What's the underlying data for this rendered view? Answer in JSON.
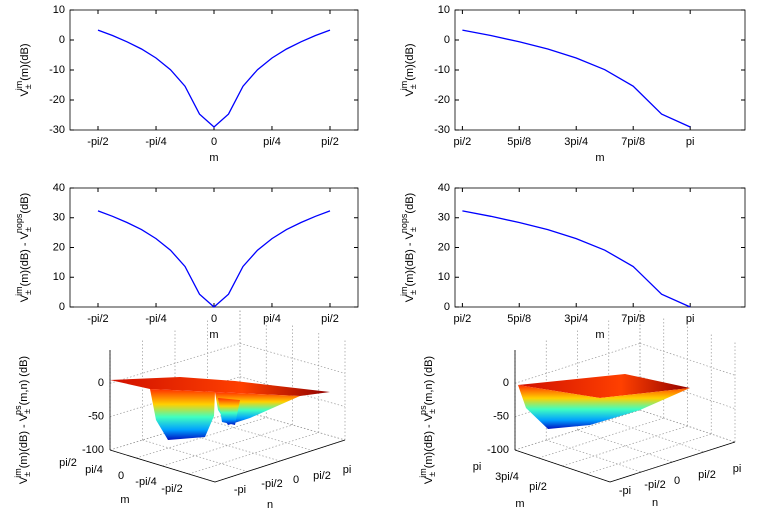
{
  "chart_data": [
    {
      "type": "line",
      "xlabel": "m",
      "ylabel": [
        {
          "text": "V",
          "style": "normal"
        },
        {
          "text": "±",
          "style": "sub"
        },
        {
          "text": "im",
          "style": "sup"
        },
        {
          "text": "(m)(dB)",
          "style": "normal"
        }
      ],
      "x": [
        -1.571,
        -1.374,
        -1.178,
        -0.982,
        -0.785,
        -0.589,
        -0.393,
        -0.196,
        0,
        0.196,
        0.393,
        0.589,
        0.785,
        0.982,
        1.178,
        1.374,
        1.571
      ],
      "series": [
        {
          "color": "#0000ff",
          "values": [
            3.3,
            1.5,
            -0.6,
            -3.0,
            -6.0,
            -9.9,
            -15.4,
            -24.7,
            -29,
            -24.7,
            -15.4,
            -9.9,
            -6.0,
            -3.0,
            -0.6,
            1.5,
            3.3
          ]
        }
      ],
      "xlim": [
        -1.95,
        1.95
      ],
      "ylim": [
        -30,
        10
      ],
      "xticks": [
        {
          "value": -1.571,
          "label": "-pi/2"
        },
        {
          "value": -0.785,
          "label": "-pi/4"
        },
        0,
        {
          "value": 0.785,
          "label": "pi/4"
        },
        {
          "value": 1.571,
          "label": "pi/2"
        }
      ],
      "yticks": [
        -30,
        -20,
        -10,
        0,
        10
      ]
    },
    {
      "type": "line",
      "xlabel": "m",
      "ylabel": [
        {
          "text": "V",
          "style": "normal"
        },
        {
          "text": "±",
          "style": "sub"
        },
        {
          "text": "im",
          "style": "sup"
        },
        {
          "text": "(m)(dB)",
          "style": "normal"
        }
      ],
      "x": [
        1.571,
        1.767,
        1.963,
        2.16,
        2.356,
        2.553,
        2.749,
        2.945,
        3.142
      ],
      "series": [
        {
          "color": "#0000ff",
          "values": [
            3.3,
            1.5,
            -0.6,
            -3.0,
            -6.0,
            -9.9,
            -15.4,
            -24.7,
            -29
          ]
        }
      ],
      "xlim": [
        1.52,
        3.52
      ],
      "ylim": [
        -30,
        10
      ],
      "xticks": [
        {
          "value": 1.571,
          "label": "pi/2"
        },
        {
          "value": 1.963,
          "label": "5pi/8"
        },
        {
          "value": 2.356,
          "label": "3pi/4"
        },
        {
          "value": 2.749,
          "label": "7pi/8"
        },
        {
          "value": 3.142,
          "label": "pi"
        }
      ],
      "yticks": [
        -30,
        -20,
        -10,
        0,
        10
      ]
    },
    {
      "type": "line",
      "xlabel": "m",
      "ylabel": [
        {
          "text": "V",
          "style": "normal"
        },
        {
          "text": "±",
          "style": "sub"
        },
        {
          "text": "im",
          "style": "sup"
        },
        {
          "text": "(m)(dB) - V",
          "style": "normal"
        },
        {
          "text": "±",
          "style": "sub"
        },
        {
          "text": "nops",
          "style": "sup"
        },
        {
          "text": "(dB)",
          "style": "normal"
        }
      ],
      "x": [
        -1.571,
        -1.374,
        -1.178,
        -0.982,
        -0.785,
        -0.589,
        -0.393,
        -0.196,
        0,
        0.196,
        0.393,
        0.589,
        0.785,
        0.982,
        1.178,
        1.374,
        1.571
      ],
      "series": [
        {
          "color": "#0000ff",
          "values": [
            32.3,
            30.5,
            28.4,
            26,
            23,
            19.1,
            13.6,
            4.3,
            0,
            4.3,
            13.6,
            19.1,
            23,
            26,
            28.4,
            30.5,
            32.3
          ]
        }
      ],
      "xlim": [
        -1.95,
        1.95
      ],
      "ylim": [
        0,
        40
      ],
      "xticks": [
        {
          "value": -1.571,
          "label": "-pi/2"
        },
        {
          "value": -0.785,
          "label": "-pi/4"
        },
        0,
        {
          "value": 0.785,
          "label": "pi/4"
        },
        {
          "value": 1.571,
          "label": "pi/2"
        }
      ],
      "yticks": [
        0,
        10,
        20,
        30,
        40
      ]
    },
    {
      "type": "line",
      "xlabel": "m",
      "ylabel": [
        {
          "text": "V",
          "style": "normal"
        },
        {
          "text": "±",
          "style": "sub"
        },
        {
          "text": "im",
          "style": "sup"
        },
        {
          "text": "(m)(dB) - V",
          "style": "normal"
        },
        {
          "text": "±",
          "style": "sub"
        },
        {
          "text": "nops",
          "style": "sup"
        },
        {
          "text": "(dB)",
          "style": "normal"
        }
      ],
      "x": [
        1.571,
        1.767,
        1.963,
        2.16,
        2.356,
        2.553,
        2.749,
        2.945,
        3.142
      ],
      "series": [
        {
          "color": "#0000ff",
          "values": [
            32.3,
            30.5,
            28.4,
            26,
            23,
            19.1,
            13.6,
            4.3,
            0
          ]
        }
      ],
      "xlim": [
        1.52,
        3.52
      ],
      "ylim": [
        0,
        40
      ],
      "xticks": [
        {
          "value": 1.571,
          "label": "pi/2"
        },
        {
          "value": 1.963,
          "label": "5pi/8"
        },
        {
          "value": 2.356,
          "label": "3pi/4"
        },
        {
          "value": 2.749,
          "label": "7pi/8"
        },
        {
          "value": 3.142,
          "label": "pi"
        }
      ],
      "yticks": [
        0,
        10,
        20,
        30,
        40
      ]
    },
    {
      "type": "surface",
      "xlabel": "m",
      "ylabel": "n",
      "zlabel": [
        {
          "text": "V",
          "style": "normal"
        },
        {
          "text": "±",
          "style": "sub"
        },
        {
          "text": "im",
          "style": "sup"
        },
        {
          "text": "(m)(dB) - V",
          "style": "normal"
        },
        {
          "text": "±",
          "style": "sub"
        },
        {
          "text": "ps",
          "style": "sup"
        },
        {
          "text": "(m,n) (dB)",
          "style": "normal"
        }
      ],
      "zlim": [
        -100,
        50
      ],
      "zticks": [
        0,
        -50,
        -100
      ],
      "xticks": [
        "pi/2",
        "pi/4",
        "0",
        "-pi/4",
        "-pi/2"
      ],
      "yticks": [
        "-pi",
        "-pi/2",
        "0",
        "pi/2",
        "pi"
      ]
    },
    {
      "type": "surface",
      "xlabel": "m",
      "ylabel": "n",
      "zlabel": [
        {
          "text": "V",
          "style": "normal"
        },
        {
          "text": "±",
          "style": "sub"
        },
        {
          "text": "im",
          "style": "sup"
        },
        {
          "text": "(m)(dB) - V",
          "style": "normal"
        },
        {
          "text": "±",
          "style": "sub"
        },
        {
          "text": "ps",
          "style": "sup"
        },
        {
          "text": "(m,n) (dB)",
          "style": "normal"
        }
      ],
      "zlim": [
        -100,
        50
      ],
      "zticks": [
        0,
        -50,
        -100
      ],
      "xticks": [
        "pi",
        "3pi/4",
        "pi/2"
      ],
      "yticks": [
        "-pi",
        "-pi/2",
        "0",
        "pi/2",
        "pi"
      ]
    }
  ]
}
